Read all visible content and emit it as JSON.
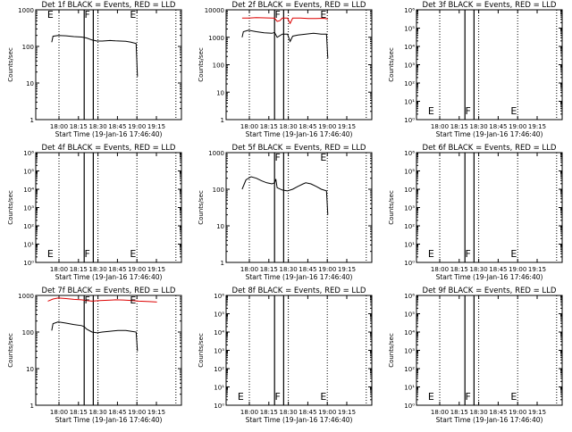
{
  "window": {
    "background": "#ffffff",
    "axis_color": "#000000",
    "events_color": "#000000",
    "lld_color": "#dd0000"
  },
  "xlabel": "Start Time (19-Jan-16 17:46:40)",
  "ylabel": "Counts/sec",
  "x_tick_labels": [
    "18:00",
    "18:15",
    "18:30",
    "18:45",
    "19:00",
    "19:15"
  ],
  "chart_data": [
    {
      "type": "line",
      "title": "Det 1f BLACK = Events, RED = LLD",
      "xlim": [
        -1.5,
        43
      ],
      "ylim": [
        1,
        1000
      ],
      "yscale": "log",
      "ytick_labels": [
        "1",
        "10",
        "100",
        "1000"
      ],
      "dotted_x": [
        3.3,
        18.3,
        33.3,
        48.3
      ],
      "solid_x": [
        13,
        16.5
      ],
      "markers": [
        {
          "text": "E",
          "x": -1.2
        },
        {
          "text": "F",
          "x": 13.1
        },
        {
          "text": "E",
          "x": 30.6
        }
      ],
      "series": [
        {
          "color": "events",
          "points": [
            [
              0.5,
              130
            ],
            [
              1,
              190
            ],
            [
              3,
              200
            ],
            [
              6,
              195
            ],
            [
              9,
              185
            ],
            [
              12,
              180
            ],
            [
              13,
              175
            ],
            [
              14,
              170
            ],
            [
              16,
              150
            ],
            [
              18,
              140
            ],
            [
              20,
              140
            ],
            [
              23,
              145
            ],
            [
              25,
              142
            ],
            [
              27,
              140
            ],
            [
              29,
              138
            ],
            [
              31,
              130
            ],
            [
              33,
              120
            ],
            [
              33.5,
              15
            ]
          ]
        }
      ]
    },
    {
      "type": "line",
      "title": "Det 2f BLACK = Events, RED = LLD",
      "xlim": [
        -1.5,
        43
      ],
      "ylim": [
        1,
        10000
      ],
      "yscale": "log",
      "ytick_labels": [
        "1",
        "10",
        "100",
        "1000",
        "10000"
      ],
      "dotted_x": [
        3.3,
        18.3,
        33.3,
        48.3
      ],
      "solid_x": [
        13,
        16.5
      ],
      "markers": [
        {
          "text": "F",
          "x": 13.1
        },
        {
          "text": "E",
          "x": 30.6
        }
      ],
      "series": [
        {
          "color": "lld",
          "points": [
            [
              0.5,
              5000
            ],
            [
              3,
              5000
            ],
            [
              6,
              5200
            ],
            [
              9,
              5100
            ],
            [
              12,
              5000
            ],
            [
              13,
              5000
            ],
            [
              14,
              3800
            ],
            [
              15,
              4000
            ],
            [
              16,
              5000
            ],
            [
              18,
              5000
            ],
            [
              19,
              3200
            ],
            [
              20,
              5000
            ],
            [
              23,
              5000
            ],
            [
              26,
              4800
            ],
            [
              29,
              4800
            ],
            [
              32,
              4900
            ],
            [
              33.5,
              4600
            ]
          ]
        },
        {
          "color": "events",
          "points": [
            [
              0.5,
              1000
            ],
            [
              1,
              1600
            ],
            [
              3,
              1800
            ],
            [
              6,
              1600
            ],
            [
              9,
              1450
            ],
            [
              12,
              1400
            ],
            [
              13,
              1500
            ],
            [
              14,
              1000
            ],
            [
              16,
              1300
            ],
            [
              18,
              1300
            ],
            [
              19,
              700
            ],
            [
              20,
              1100
            ],
            [
              22,
              1200
            ],
            [
              25,
              1300
            ],
            [
              28,
              1400
            ],
            [
              31,
              1300
            ],
            [
              33,
              1300
            ],
            [
              33.5,
              170
            ]
          ]
        }
      ]
    },
    {
      "type": "line",
      "title": "Det 3f BLACK = Events, RED = LLD",
      "xlim": [
        -1.5,
        43
      ],
      "ylim": [
        1,
        1000000
      ],
      "yscale": "log",
      "ytick_labels": [
        "10⁰",
        "10¹",
        "10²",
        "10³",
        "10⁴",
        "10⁵",
        "10⁶"
      ],
      "dotted_x": [
        3.3,
        18.3,
        33.3,
        48.3
      ],
      "solid_x": [
        13,
        16.5
      ],
      "markers": [
        {
          "text": "E",
          "x": -1.2
        },
        {
          "text": "F",
          "x": 13.1
        },
        {
          "text": "E",
          "x": 30.6
        }
      ],
      "series": []
    },
    {
      "type": "line",
      "title": "Det 4f BLACK = Events, RED = LLD",
      "xlim": [
        -1.5,
        43
      ],
      "ylim": [
        1,
        1000000
      ],
      "yscale": "log",
      "ytick_labels": [
        "10⁰",
        "10¹",
        "10²",
        "10³",
        "10⁴",
        "10⁵",
        "10⁶"
      ],
      "dotted_x": [
        3.3,
        18.3,
        33.3,
        48.3
      ],
      "solid_x": [
        13,
        16.5
      ],
      "markers": [
        {
          "text": "E",
          "x": -1.2
        },
        {
          "text": "F",
          "x": 13.1
        },
        {
          "text": "E",
          "x": 30.6
        }
      ],
      "series": []
    },
    {
      "type": "line",
      "title": "Det 5f BLACK = Events, RED = LLD",
      "xlim": [
        -1.5,
        43
      ],
      "ylim": [
        1,
        1000
      ],
      "yscale": "log",
      "ytick_labels": [
        "1",
        "10",
        "100",
        "1000"
      ],
      "dotted_x": [
        3.3,
        18.3,
        33.3,
        48.3
      ],
      "solid_x": [
        13,
        16.5
      ],
      "markers": [
        {
          "text": "F",
          "x": 13.1
        },
        {
          "text": "E",
          "x": 30.6
        }
      ],
      "series": [
        {
          "color": "events",
          "points": [
            [
              0.5,
              100
            ],
            [
              2,
              180
            ],
            [
              4,
              220
            ],
            [
              6,
              200
            ],
            [
              8,
              170
            ],
            [
              10,
              150
            ],
            [
              12,
              140
            ],
            [
              13,
              150
            ],
            [
              13.5,
              190
            ],
            [
              14,
              110
            ],
            [
              16,
              95
            ],
            [
              18,
              90
            ],
            [
              20,
              100
            ],
            [
              22,
              120
            ],
            [
              24,
              140
            ],
            [
              25,
              150
            ],
            [
              27,
              140
            ],
            [
              29,
              120
            ],
            [
              31,
              100
            ],
            [
              33,
              90
            ],
            [
              33.5,
              20
            ]
          ]
        }
      ]
    },
    {
      "type": "line",
      "title": "Det 6f BLACK = Events, RED = LLD",
      "xlim": [
        -1.5,
        43
      ],
      "ylim": [
        1,
        1000000
      ],
      "yscale": "log",
      "ytick_labels": [
        "10⁰",
        "10¹",
        "10²",
        "10³",
        "10⁴",
        "10⁵",
        "10⁶"
      ],
      "dotted_x": [
        3.3,
        18.3,
        33.3,
        48.3
      ],
      "solid_x": [
        13,
        16.5
      ],
      "markers": [
        {
          "text": "E",
          "x": -1.2
        },
        {
          "text": "F",
          "x": 13.1
        },
        {
          "text": "E",
          "x": 30.6
        }
      ],
      "series": []
    },
    {
      "type": "line",
      "title": "Det 7f BLACK = Events, RED = LLD",
      "xlim": [
        -1.5,
        43
      ],
      "ylim": [
        1,
        1000
      ],
      "yscale": "log",
      "ytick_labels": [
        "1",
        "10",
        "100",
        "1000"
      ],
      "dotted_x": [
        3.3,
        18.3,
        33.3,
        48.3
      ],
      "solid_x": [
        13,
        16.5
      ],
      "markers": [
        {
          "text": "F",
          "x": 13.1
        },
        {
          "text": "E",
          "x": 30.6
        }
      ],
      "series": [
        {
          "color": "lld",
          "points": [
            [
              -1,
              700
            ],
            [
              1,
              800
            ],
            [
              3,
              850
            ],
            [
              6,
              820
            ],
            [
              9,
              780
            ],
            [
              12,
              760
            ],
            [
              14,
              720
            ],
            [
              16,
              700
            ],
            [
              19,
              720
            ],
            [
              22,
              740
            ],
            [
              25,
              760
            ],
            [
              28,
              750
            ],
            [
              31,
              730
            ],
            [
              34,
              700
            ],
            [
              38,
              680
            ],
            [
              41,
              660
            ]
          ]
        },
        {
          "color": "events",
          "points": [
            [
              0.5,
              110
            ],
            [
              1,
              170
            ],
            [
              3,
              190
            ],
            [
              6,
              175
            ],
            [
              9,
              160
            ],
            [
              12,
              150
            ],
            [
              13,
              140
            ],
            [
              14,
              120
            ],
            [
              16,
              100
            ],
            [
              18,
              95
            ],
            [
              20,
              100
            ],
            [
              23,
              105
            ],
            [
              26,
              110
            ],
            [
              29,
              110
            ],
            [
              31,
              105
            ],
            [
              33,
              100
            ],
            [
              33.5,
              30
            ]
          ]
        }
      ]
    },
    {
      "type": "line",
      "title": "Det 8f BLACK = Events, RED = LLD",
      "xlim": [
        -1.5,
        43
      ],
      "ylim": [
        1,
        1000000
      ],
      "yscale": "log",
      "ytick_labels": [
        "10⁰",
        "10¹",
        "10²",
        "10³",
        "10⁴",
        "10⁵",
        "10⁶"
      ],
      "dotted_x": [
        3.3,
        18.3,
        33.3,
        48.3
      ],
      "solid_x": [
        13,
        16.5
      ],
      "markers": [
        {
          "text": "E",
          "x": -1.2
        },
        {
          "text": "F",
          "x": 13.1
        },
        {
          "text": "E",
          "x": 30.6
        }
      ],
      "series": []
    },
    {
      "type": "line",
      "title": "Det 9f BLACK = Events, RED = LLD",
      "xlim": [
        -1.5,
        43
      ],
      "ylim": [
        1,
        1000000
      ],
      "yscale": "log",
      "ytick_labels": [
        "10⁰",
        "10¹",
        "10²",
        "10³",
        "10⁴",
        "10⁵",
        "10⁶"
      ],
      "dotted_x": [
        3.3,
        18.3,
        33.3,
        48.3
      ],
      "solid_x": [
        13,
        16.5
      ],
      "markers": [
        {
          "text": "E",
          "x": -1.2
        },
        {
          "text": "F",
          "x": 13.1
        },
        {
          "text": "E",
          "x": 30.6
        }
      ],
      "series": []
    }
  ]
}
